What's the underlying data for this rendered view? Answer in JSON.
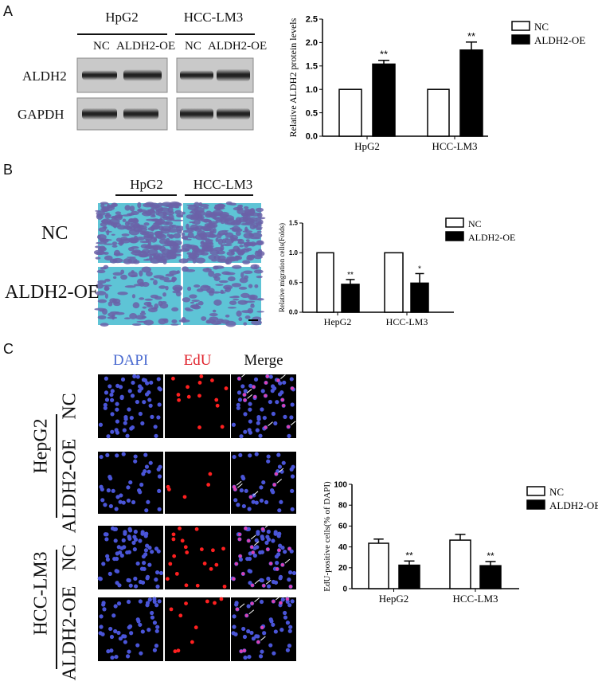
{
  "panels": {
    "a": {
      "label": "A",
      "groups": [
        "HpG2",
        "HCC-LM3"
      ],
      "lanes": [
        "NC",
        "ALDH2-OE",
        "NC",
        "ALDH2-OE"
      ],
      "rows": [
        "ALDH2",
        "GAPDH"
      ]
    },
    "b": {
      "label": "B",
      "groups": [
        "HpG2",
        "HCC-LM3"
      ],
      "rows": [
        "NC",
        "ALDH2-OE"
      ]
    },
    "c": {
      "label": "C",
      "channels": [
        {
          "name": "DAPI",
          "color": "#4a6ad0"
        },
        {
          "name": "EdU",
          "color": "#e0202a"
        },
        {
          "name": "Merge",
          "color": "#111111"
        }
      ],
      "groups": [
        "HepG2",
        "HCC-LM3"
      ],
      "rows": [
        "NC",
        "ALDH2-OE"
      ]
    }
  },
  "chart_data": [
    {
      "type": "bar",
      "ylabel": "Relative ALDH2 protein levels",
      "categories": [
        "HpG2",
        "HCC-LM3"
      ],
      "ylim": [
        0,
        2.5
      ],
      "yticks": [
        "0.0",
        "0.5",
        "1.0",
        "1.5",
        "2.0",
        "2.5"
      ],
      "series": [
        {
          "name": "NC",
          "values": [
            1.0,
            1.0
          ],
          "errors": [
            0,
            0
          ],
          "color": "#ffffff"
        },
        {
          "name": "ALDH2-OE",
          "values": [
            1.54,
            1.84
          ],
          "errors": [
            0.08,
            0.17
          ],
          "color": "#000000",
          "annotations": [
            "**",
            "**"
          ]
        }
      ],
      "legend": "top-right"
    },
    {
      "type": "bar",
      "ylabel": "Relative migration cells(Folds)",
      "categories": [
        "HepG2",
        "HCC-LM3"
      ],
      "ylim": [
        0,
        1.5
      ],
      "yticks": [
        "0.0",
        "0.5",
        "1.0",
        "1.5"
      ],
      "series": [
        {
          "name": "NC",
          "values": [
            1.0,
            1.0
          ],
          "errors": [
            0,
            0
          ],
          "color": "#ffffff"
        },
        {
          "name": "ALDH2-OE",
          "values": [
            0.47,
            0.49
          ],
          "errors": [
            0.08,
            0.16
          ],
          "color": "#000000",
          "annotations": [
            "**",
            "*"
          ]
        }
      ],
      "legend": "top-right"
    },
    {
      "type": "bar",
      "ylabel": "EdU-positive cells(% of DAPI)",
      "categories": [
        "HepG2",
        "HCC-LM3"
      ],
      "ylim": [
        0,
        100
      ],
      "yticks": [
        "0",
        "20",
        "40",
        "60",
        "80",
        "100"
      ],
      "series": [
        {
          "name": "NC",
          "values": [
            43.5,
            46.5
          ],
          "errors": [
            4,
            5.5
          ],
          "color": "#ffffff"
        },
        {
          "name": "ALDH2-OE",
          "values": [
            22.5,
            22
          ],
          "errors": [
            4,
            4
          ],
          "color": "#000000",
          "annotations": [
            "**",
            "**"
          ]
        }
      ],
      "legend": "top-right"
    }
  ]
}
